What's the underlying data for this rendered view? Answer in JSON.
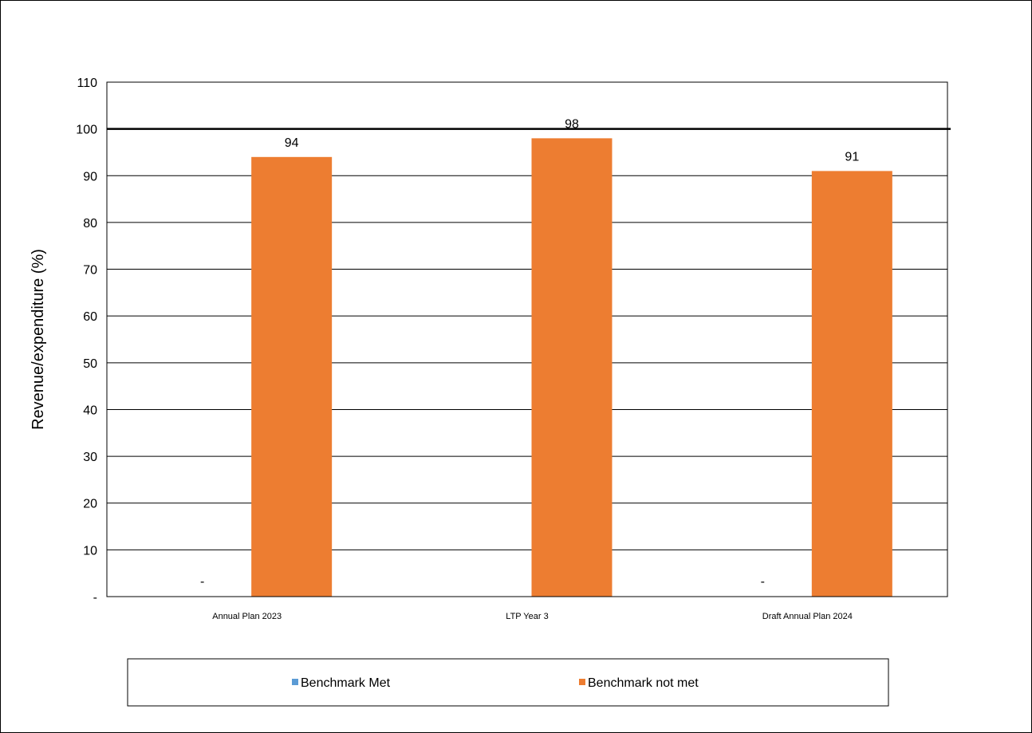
{
  "chart_data": {
    "type": "bar",
    "categories": [
      "Annual Plan 2023",
      "LTP Year 3",
      "Draft Annual Plan 2024"
    ],
    "series": [
      {
        "name": "Benchmark Met",
        "values": [
          0,
          null,
          0
        ],
        "color": "#5b9bd5"
      },
      {
        "name": "Benchmark not met",
        "values": [
          94,
          98,
          91
        ],
        "color": "#ed7d31"
      }
    ],
    "data_labels": [
      [
        "-",
        "",
        "-"
      ],
      [
        "94",
        "98",
        "91"
      ]
    ],
    "ylabel": "Revenue/expenditure  (%)",
    "ylim": [
      0,
      110
    ],
    "yticks": [
      0,
      10,
      20,
      30,
      40,
      50,
      60,
      70,
      80,
      90,
      100,
      110
    ],
    "ytick_labels": [
      "-",
      "10",
      "20",
      "30",
      "40",
      "50",
      "60",
      "70",
      "80",
      "90",
      "100",
      "110"
    ],
    "benchmark_line": 100,
    "grid": true,
    "legend_position": "bottom"
  }
}
